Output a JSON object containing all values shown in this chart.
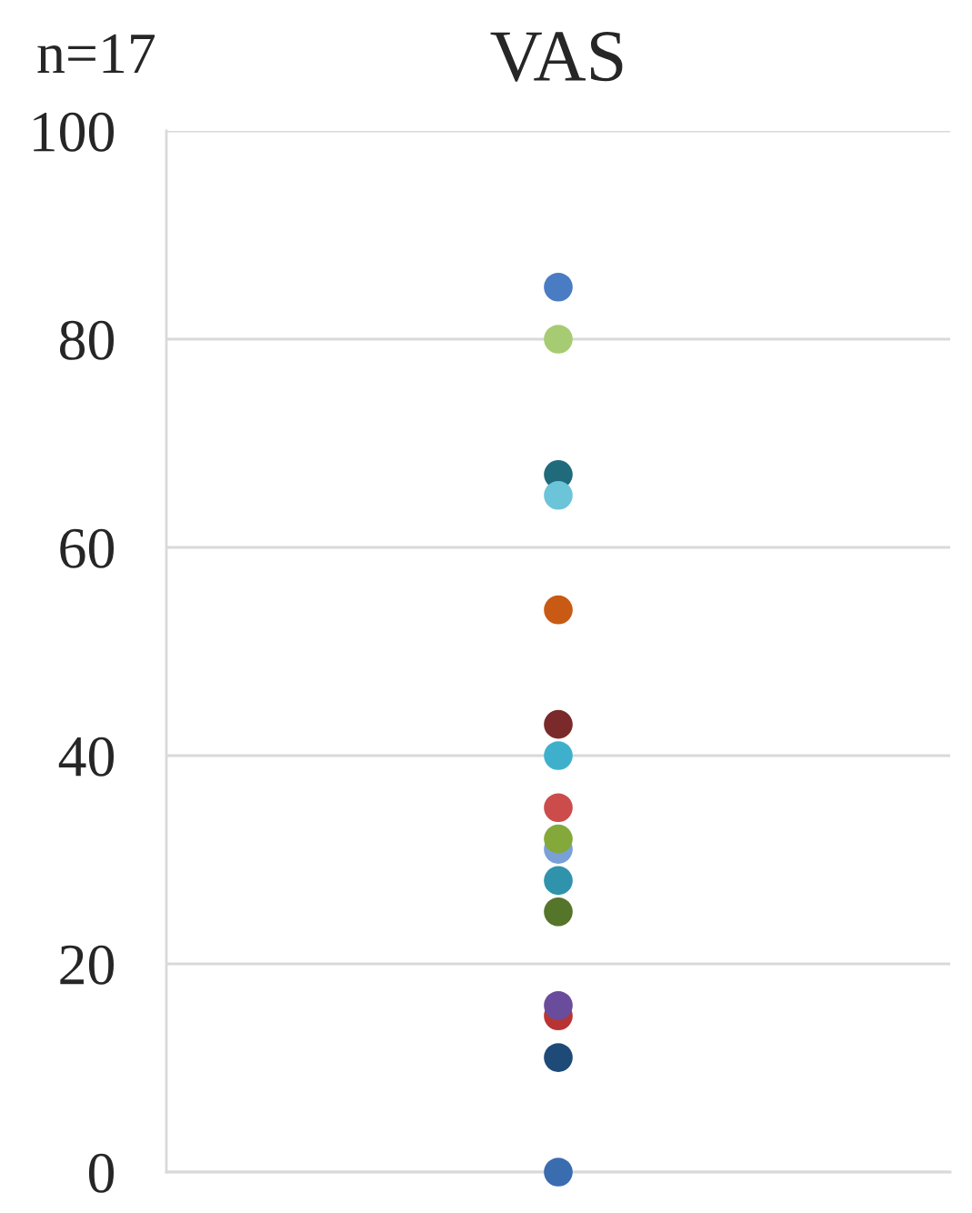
{
  "chart_data": {
    "type": "scatter",
    "title": "VAS",
    "annotations": [
      "n=17"
    ],
    "categories": [
      null
    ],
    "series": [
      {
        "color": "#4a7cc4",
        "values": [
          85
        ]
      },
      {
        "color": "#a6cb72",
        "values": [
          80
        ]
      },
      {
        "color": "#1f6b7c",
        "values": [
          67
        ]
      },
      {
        "color": "#6cc4d8",
        "values": [
          65
        ]
      },
      {
        "color": "#c85a14",
        "values": [
          54
        ]
      },
      {
        "color": "#7a2a2a",
        "values": [
          43
        ]
      },
      {
        "color": "#3fb0cc",
        "values": [
          40
        ]
      },
      {
        "color": "#cc4b4b",
        "values": [
          35
        ]
      },
      {
        "color": "#7aa0d8",
        "values": [
          31
        ]
      },
      {
        "color": "#84a83a",
        "values": [
          32
        ]
      },
      {
        "color": "#2f93ac",
        "values": [
          28
        ]
      },
      {
        "color": "#55752a",
        "values": [
          25
        ]
      },
      {
        "color": "#b83434",
        "values": [
          15
        ]
      },
      {
        "color": "#6a4c9c",
        "values": [
          16
        ]
      },
      {
        "color": "#1e4a78",
        "values": [
          11
        ]
      },
      {
        "color": "#3a6cb0",
        "values": [
          0
        ]
      }
    ],
    "marker": "circle",
    "ylim": [
      0,
      100
    ],
    "yticks": [
      0,
      20,
      40,
      60,
      80,
      100
    ],
    "grid": "y"
  }
}
